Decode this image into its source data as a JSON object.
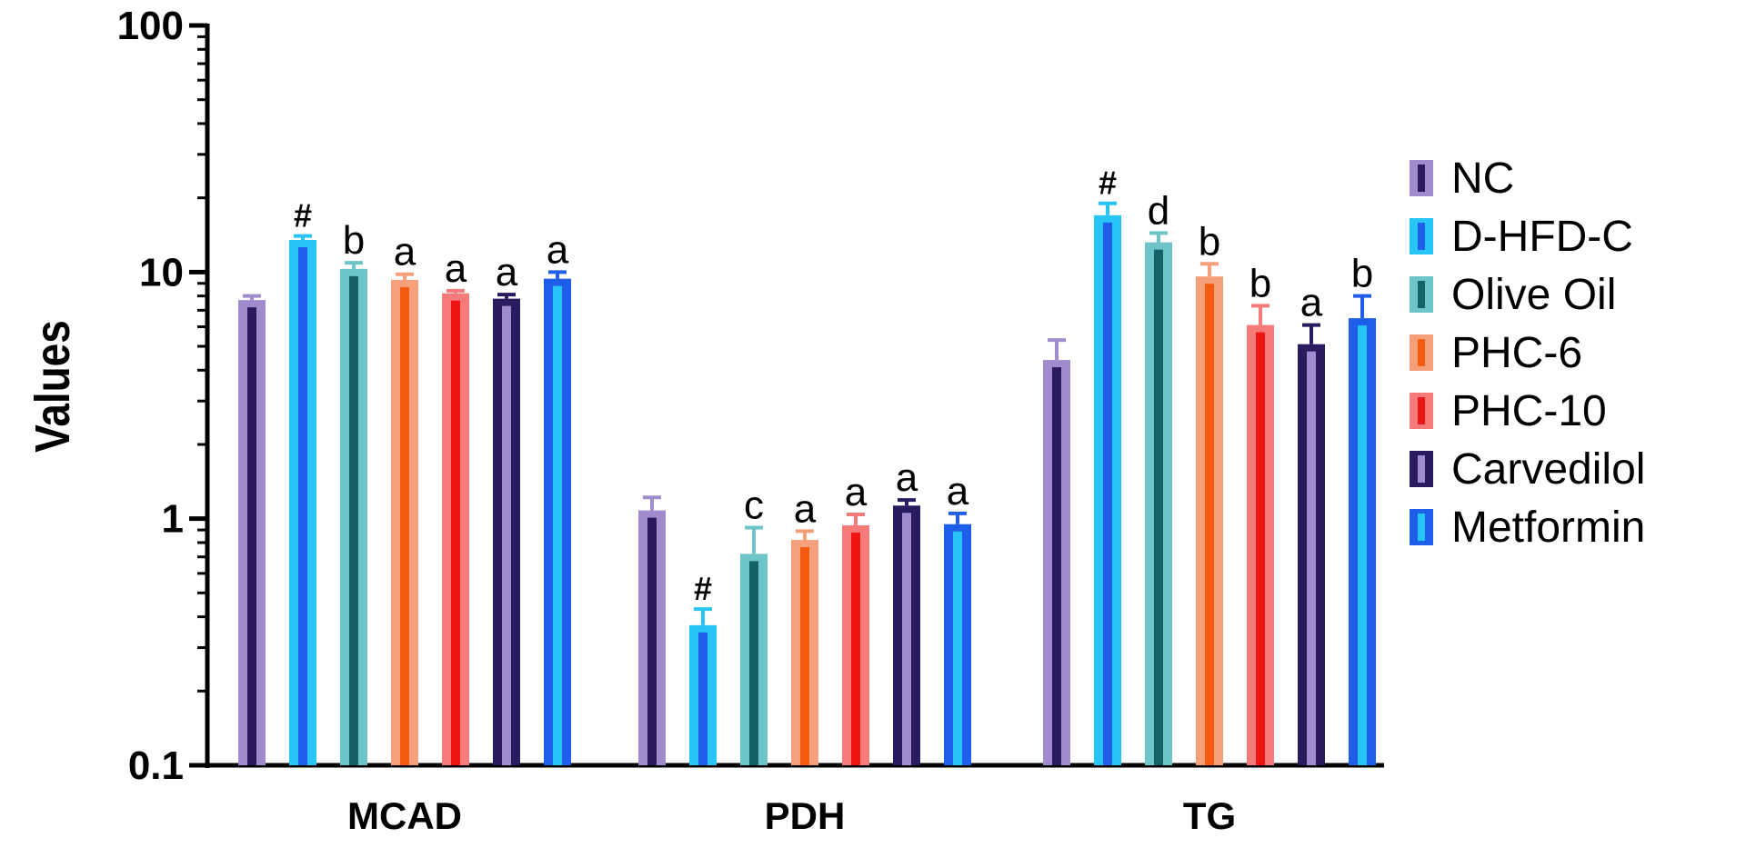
{
  "chart_data": {
    "type": "bar",
    "yscale": "log",
    "ylabel": "Values",
    "ylim": [
      0.1,
      100
    ],
    "yticks": [
      {
        "value": 0.1,
        "label": "0.1"
      },
      {
        "value": 1,
        "label": "1"
      },
      {
        "value": 10,
        "label": "10"
      },
      {
        "value": 100,
        "label": "100"
      }
    ],
    "categories": [
      "MCAD",
      "PDH",
      "TG"
    ],
    "legend_position": "right",
    "series": [
      {
        "name": "NC",
        "color": "#a08ccd",
        "inner_color": "#2a1a5e",
        "values": [
          7.7,
          1.08,
          4.4
        ],
        "errors": [
          0.3,
          0.14,
          0.9
        ],
        "annotations": [
          "",
          "",
          ""
        ]
      },
      {
        "name": "D-HFD-C",
        "color": "#29c4f6",
        "inner_color": "#1e5ee8",
        "values": [
          13.5,
          0.37,
          17.0
        ],
        "errors": [
          0.5,
          0.06,
          2.0
        ],
        "annotations": [
          "#",
          "#",
          "#"
        ]
      },
      {
        "name": "Olive Oil",
        "color": "#6ec5c8",
        "inner_color": "#146266",
        "values": [
          10.3,
          0.72,
          13.2
        ],
        "errors": [
          0.6,
          0.2,
          1.2
        ],
        "annotations": [
          "b",
          "c",
          "d"
        ]
      },
      {
        "name": "PHC-6",
        "color": "#f5a07a",
        "inner_color": "#f25a10",
        "values": [
          9.3,
          0.82,
          9.6
        ],
        "errors": [
          0.5,
          0.07,
          1.2
        ],
        "annotations": [
          "a",
          "a",
          "b"
        ]
      },
      {
        "name": "PHC-10",
        "color": "#f57a7a",
        "inner_color": "#ee1515",
        "values": [
          8.2,
          0.94,
          6.1
        ],
        "errors": [
          0.2,
          0.1,
          1.2
        ],
        "annotations": [
          "a",
          "a",
          "b"
        ]
      },
      {
        "name": "Carvedilol",
        "color": "#2a1a5e",
        "inner_color": "#a08ccd",
        "values": [
          7.8,
          1.13,
          5.1
        ],
        "errors": [
          0.3,
          0.06,
          1.0
        ],
        "annotations": [
          "a",
          "a",
          "a"
        ]
      },
      {
        "name": "Metformin",
        "color": "#1e5ee8",
        "inner_color": "#29c4f6",
        "values": [
          9.4,
          0.95,
          6.5
        ],
        "errors": [
          0.6,
          0.1,
          1.5
        ],
        "annotations": [
          "a",
          "a",
          "b"
        ]
      }
    ]
  }
}
